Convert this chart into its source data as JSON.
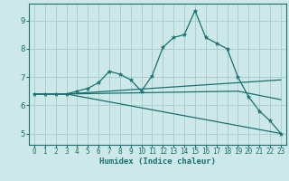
{
  "xlabel": "Humidex (Indice chaleur)",
  "bg_color": "#cce8e8",
  "grid_color": "#aacfcf",
  "line_color": "#1a7070",
  "xlim": [
    -0.5,
    23.5
  ],
  "ylim": [
    4.6,
    9.6
  ],
  "xticks": [
    0,
    1,
    2,
    3,
    4,
    5,
    6,
    7,
    8,
    9,
    10,
    11,
    12,
    13,
    14,
    15,
    16,
    17,
    18,
    19,
    20,
    21,
    22,
    23
  ],
  "yticks": [
    5,
    6,
    7,
    8,
    9
  ],
  "lines": [
    {
      "x": [
        0,
        1,
        2,
        3,
        4,
        5,
        6,
        7,
        8,
        9,
        10,
        11,
        12,
        13,
        14,
        15,
        16,
        17,
        18,
        19,
        20,
        21,
        22,
        23
      ],
      "y": [
        6.4,
        6.4,
        6.4,
        6.4,
        6.5,
        6.6,
        6.8,
        7.2,
        7.1,
        6.9,
        6.5,
        7.05,
        8.05,
        8.4,
        8.5,
        9.35,
        8.4,
        8.2,
        8.0,
        7.0,
        6.3,
        5.8,
        5.45,
        5.0
      ],
      "marker": true
    },
    {
      "x": [
        0,
        3,
        23
      ],
      "y": [
        6.4,
        6.4,
        6.9
      ],
      "marker": false
    },
    {
      "x": [
        0,
        3,
        19,
        23
      ],
      "y": [
        6.4,
        6.4,
        6.5,
        6.2
      ],
      "marker": false
    },
    {
      "x": [
        0,
        3,
        23
      ],
      "y": [
        6.4,
        6.4,
        5.0
      ],
      "marker": false
    }
  ]
}
